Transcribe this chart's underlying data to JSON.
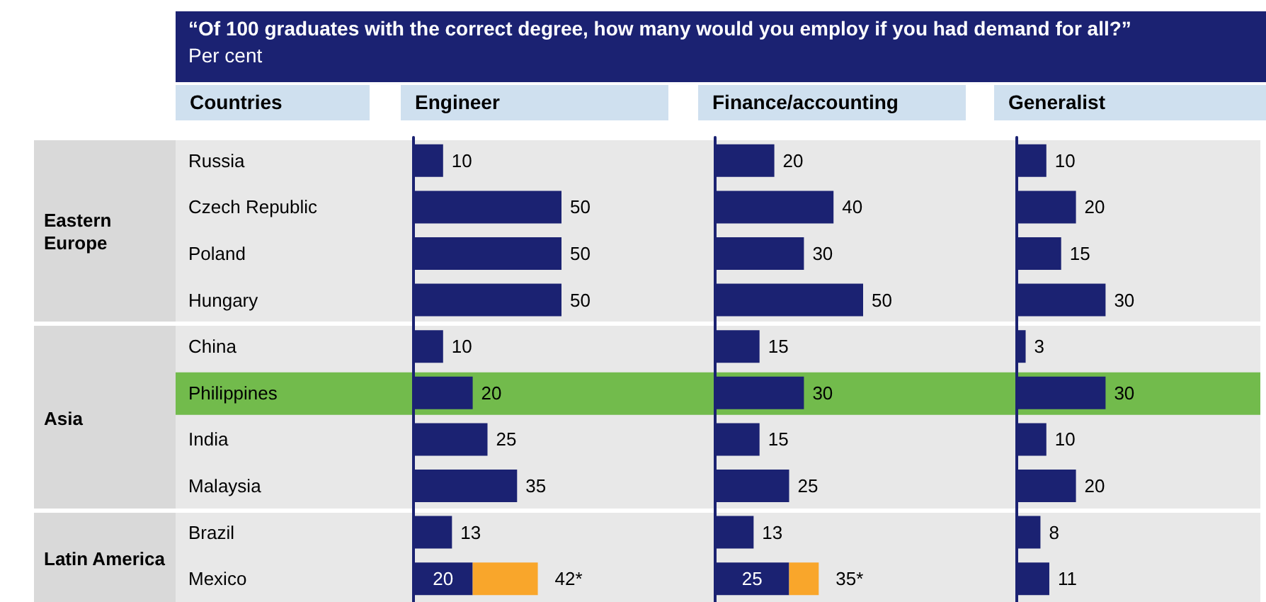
{
  "chart_data": [
    {
      "type": "bar",
      "orientation": "horizontal",
      "stacked": true,
      "title": "“Of 100 graduates with the correct degree, how many would you employ if you had demand for all?”",
      "subtitle": "Per cent",
      "ylabel": "Countries",
      "xlabel": "Engineer",
      "tick_labels": "y",
      "categories": [
        "Russia",
        "Czech Republic",
        "Poland",
        "Hungary",
        "China",
        "Philippines",
        "India",
        "Malaysia",
        "Brazil",
        "Mexico"
      ],
      "series": [
        {
          "color": "#1b2272",
          "values": [
            10,
            50,
            50,
            50,
            10,
            20,
            25,
            35,
            13,
            20
          ],
          "value_labels": [
            "10",
            "50",
            "50",
            "50",
            "10",
            "20",
            "25",
            "35",
            "13",
            "20"
          ]
        },
        {
          "color": "#f9a62b",
          "values": [
            null,
            null,
            null,
            null,
            null,
            null,
            null,
            null,
            null,
            22
          ]
        }
      ],
      "totals": [
        null,
        null,
        null,
        null,
        null,
        null,
        null,
        null,
        null,
        "42*"
      ],
      "bands": [
        {
          "axis": "y",
          "from": "Philippines",
          "to": "Philippines",
          "color": "#72bb4c"
        }
      ],
      "annotations": [
        "Eastern Europe",
        "Asia",
        "Latin America"
      ]
    },
    {
      "type": "bar",
      "orientation": "horizontal",
      "stacked": true,
      "xlabel": "Finance/accounting",
      "tick_labels": false,
      "categories": [
        "Russia",
        "Czech Republic",
        "Poland",
        "Hungary",
        "China",
        "Philippines",
        "India",
        "Malaysia",
        "Brazil",
        "Mexico"
      ],
      "series": [
        {
          "color": "#1b2272",
          "values": [
            20,
            40,
            30,
            50,
            15,
            30,
            15,
            25,
            13,
            25
          ],
          "value_labels": [
            "20",
            "40",
            "30",
            "50",
            "15",
            "30",
            "15",
            "25",
            "13",
            "25"
          ]
        },
        {
          "color": "#f9a62b",
          "values": [
            null,
            null,
            null,
            null,
            null,
            null,
            null,
            null,
            null,
            10
          ]
        }
      ],
      "totals": [
        null,
        null,
        null,
        null,
        null,
        null,
        null,
        null,
        null,
        "35*"
      ],
      "bands": [
        {
          "axis": "y",
          "from": "Philippines",
          "to": "Philippines",
          "color": "#72bb4c"
        }
      ]
    },
    {
      "type": "bar",
      "orientation": "horizontal",
      "xlabel": "Generalist",
      "tick_labels": false,
      "data_labels": true,
      "categories": [
        "Russia",
        "Czech Republic",
        "Poland",
        "Hungary",
        "China",
        "Philippines",
        "India",
        "Malaysia",
        "Brazil",
        "Mexico"
      ],
      "series": [
        {
          "color": "#1b2272",
          "values": [
            10,
            20,
            15,
            30,
            3,
            30,
            10,
            20,
            8,
            11
          ]
        }
      ],
      "bands": [
        {
          "axis": "y",
          "from": "Philippines",
          "to": "Philippines",
          "color": "#72bb4c"
        }
      ]
    }
  ]
}
